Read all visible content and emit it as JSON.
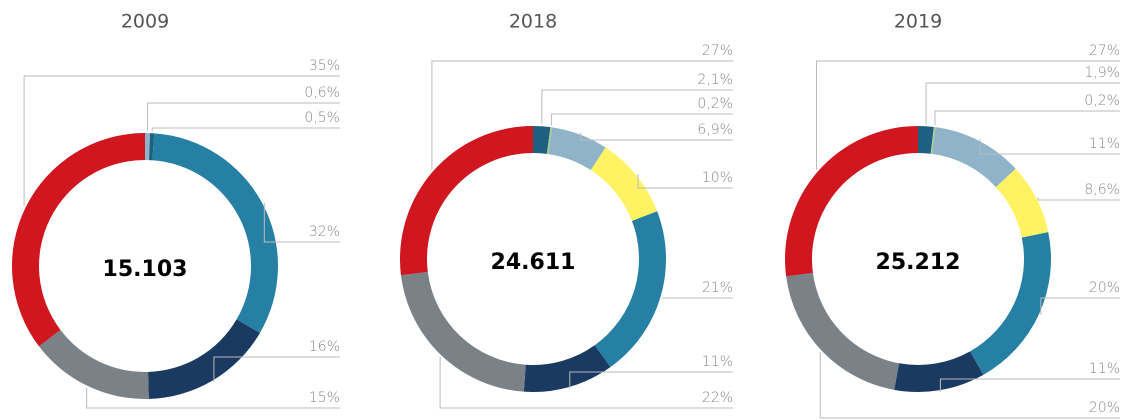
{
  "chart_data": [
    {
      "type": "pie",
      "donut": true,
      "title": "2009",
      "center_label": "15.103",
      "values": [
        0.6,
        0.5,
        32,
        16,
        15,
        35
      ],
      "value_labels": [
        "0,6%",
        "0,5%",
        "32%",
        "16%",
        "15%",
        "35%"
      ],
      "colors": [
        "#8fb3c8",
        "#1f5f7f",
        "#2680a3",
        "#1a3a61",
        "#7a8288",
        "#d0161f"
      ]
    },
    {
      "type": "pie",
      "donut": true,
      "title": "2018",
      "center_label": "24.611",
      "values": [
        2.1,
        0.2,
        6.9,
        10,
        21,
        11,
        22,
        27
      ],
      "value_labels": [
        "2,1%",
        "0,2%",
        "6,9%",
        "10%",
        "21%",
        "11%",
        "22%",
        "27%"
      ],
      "colors": [
        "#1f5f7f",
        "#a8d08d",
        "#8fb3c8",
        "#fff263",
        "#2680a3",
        "#1a3a61",
        "#7a8288",
        "#d0161f"
      ]
    },
    {
      "type": "pie",
      "donut": true,
      "title": "2019",
      "center_label": "25.212",
      "values": [
        1.9,
        0.2,
        11,
        8.6,
        20,
        11,
        20,
        27
      ],
      "value_labels": [
        "1,9%",
        "0,2%",
        "11%",
        "8,6%",
        "20%",
        "11%",
        "20%",
        "27%"
      ],
      "colors": [
        "#1f5f7f",
        "#a8d08d",
        "#8fb3c8",
        "#fff263",
        "#2680a3",
        "#1a3a61",
        "#7a8288",
        "#d0161f"
      ]
    }
  ]
}
